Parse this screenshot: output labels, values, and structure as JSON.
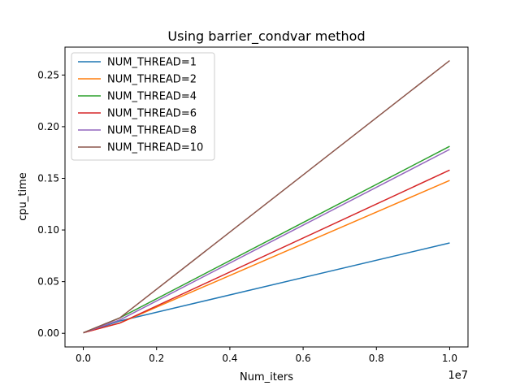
{
  "chart_data": {
    "type": "line",
    "title": "Using barrier_condvar method",
    "xlabel": "Num_iters",
    "ylabel": "cpu_time",
    "x_offset_text": "1e7",
    "x": [
      0,
      1000000,
      10000000
    ],
    "xlim": [
      -500000,
      10500000
    ],
    "ylim": [
      -0.0132,
      0.277
    ],
    "x_ticks": [
      0,
      2000000,
      4000000,
      6000000,
      8000000,
      10000000
    ],
    "x_tick_labels": [
      "0.0",
      "0.2",
      "0.4",
      "0.6",
      "0.8",
      "1.0"
    ],
    "y_ticks": [
      0,
      0.05,
      0.1,
      0.15,
      0.2,
      0.25
    ],
    "y_tick_labels": [
      "0.00",
      "0.05",
      "0.10",
      "0.15",
      "0.20",
      "0.25"
    ],
    "grid": false,
    "legend_position": "top-left",
    "series": [
      {
        "name": "NUM_THREAD=1",
        "color": "#1f77b4",
        "values": [
          0.0005,
          0.012,
          0.0875
        ]
      },
      {
        "name": "NUM_THREAD=2",
        "color": "#ff7f0e",
        "values": [
          0.0005,
          0.01,
          0.148
        ]
      },
      {
        "name": "NUM_THREAD=4",
        "color": "#2ca02c",
        "values": [
          0.0005,
          0.015,
          0.181
        ]
      },
      {
        "name": "NUM_THREAD=6",
        "color": "#d62728",
        "values": [
          0.0005,
          0.01,
          0.158
        ]
      },
      {
        "name": "NUM_THREAD=8",
        "color": "#9467bd",
        "values": [
          0.0005,
          0.013,
          0.178
        ]
      },
      {
        "name": "NUM_THREAD=10",
        "color": "#8c564b",
        "values": [
          0.0005,
          0.015,
          0.264
        ]
      }
    ]
  }
}
